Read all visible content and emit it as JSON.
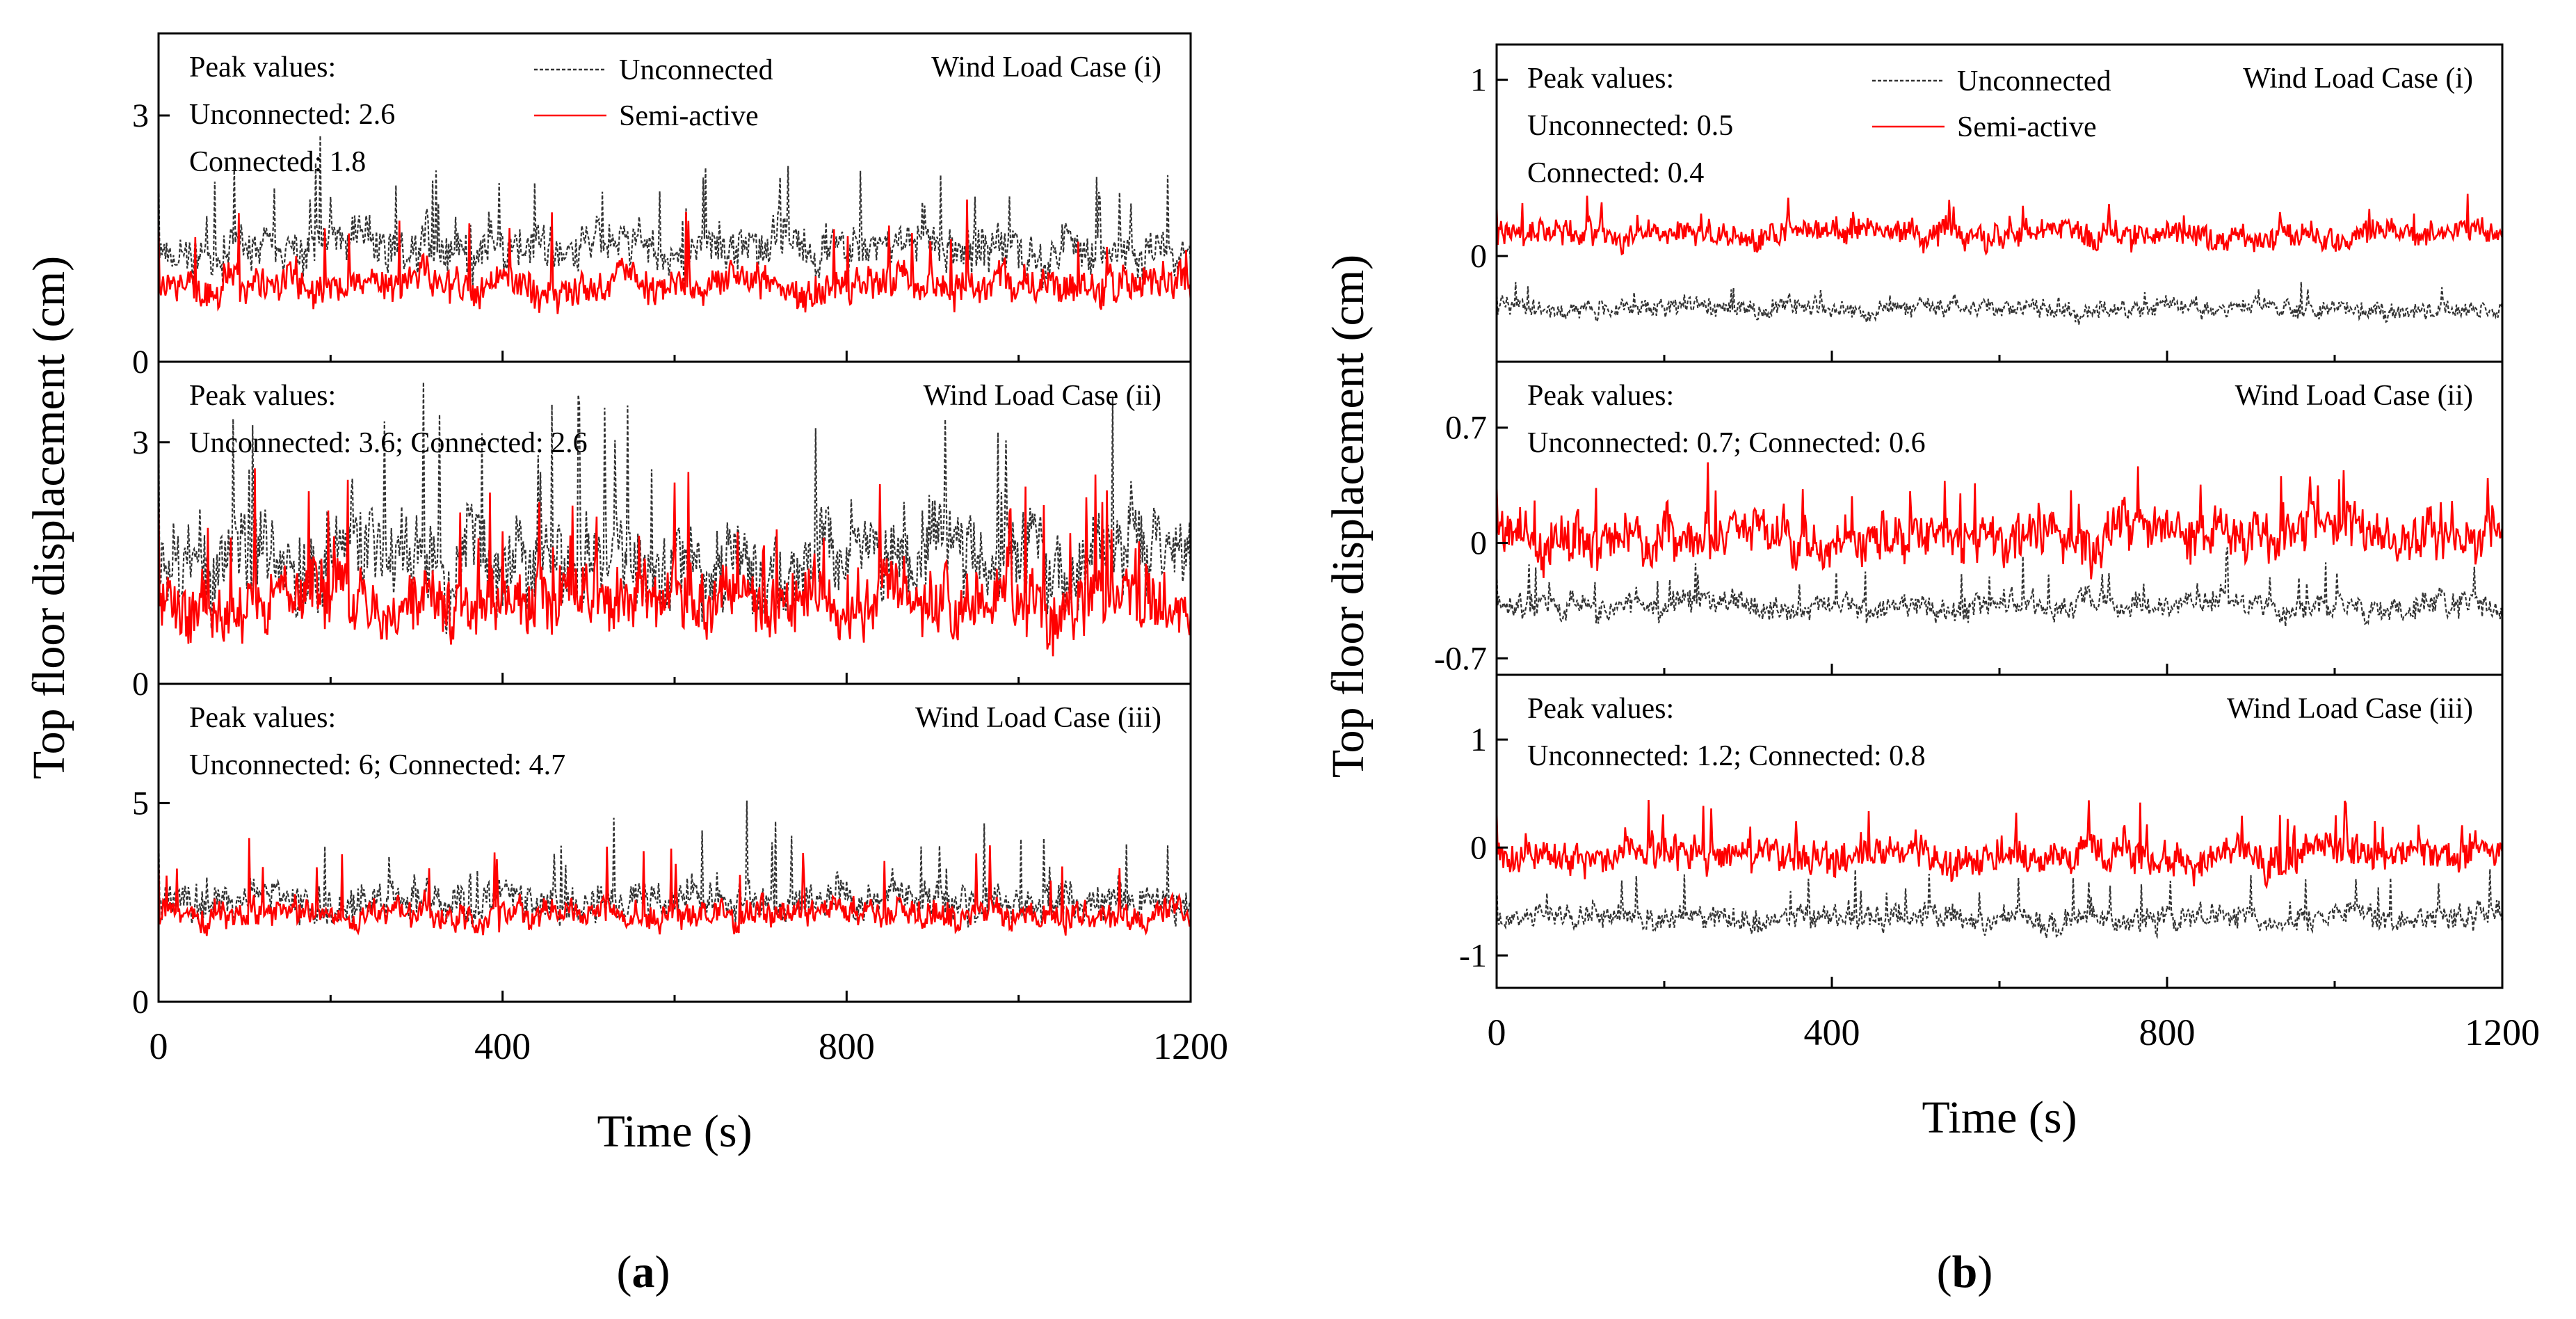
{
  "chart_data": [
    {
      "type": "line",
      "panel_label_prefix": "(",
      "panel_label_letter": "a",
      "panel_label_suffix": ")",
      "xlabel": "Time (s)",
      "ylabel": "Top floor displacement (cm)",
      "xlim": [
        0,
        1200
      ],
      "xticks": [
        "0",
        "400",
        "800",
        "1200"
      ],
      "subplots": [
        {
          "case_label": "Wind Load Case (i)",
          "peak_title": "Peak values:",
          "peak_lines": [
            "Unconnected: 2.6",
            "Connected: 1.8"
          ],
          "legend": [
            "Unconnected",
            "Semi-active"
          ],
          "ylim": [
            0,
            4
          ],
          "yticks": [
            0,
            3
          ],
          "ytick_labels": [
            "0",
            "3"
          ],
          "series": [
            {
              "name": "Unconnected",
              "color": "#333333",
              "dashed": true,
              "base": 1.4,
              "amp": 0.38,
              "spike": 1.1,
              "seed": 11
            },
            {
              "name": "Semi-active",
              "color": "#ff0000",
              "dashed": false,
              "base": 0.95,
              "amp": 0.3,
              "spike": 0.85,
              "seed": 12
            }
          ]
        },
        {
          "case_label": "Wind Load Case (ii)",
          "peak_title": "Peak values:",
          "peak_lines": [
            "Unconnected: 3.6; Connected: 2.6"
          ],
          "legend": [],
          "ylim": [
            0,
            4
          ],
          "yticks": [
            0,
            3
          ],
          "ytick_labels": [
            "0",
            "3"
          ],
          "series": [
            {
              "name": "Unconnected",
              "color": "#333333",
              "dashed": true,
              "base": 1.55,
              "amp": 0.75,
              "spike": 2.0,
              "seed": 21
            },
            {
              "name": "Semi-active",
              "color": "#ff0000",
              "dashed": false,
              "base": 1.05,
              "amp": 0.55,
              "spike": 1.5,
              "seed": 22
            }
          ]
        },
        {
          "case_label": "Wind Load Case (iii)",
          "peak_title": "Peak values:",
          "peak_lines": [
            "Unconnected: 6; Connected: 4.7"
          ],
          "legend": [],
          "ylim": [
            0,
            8
          ],
          "yticks": [
            0,
            5
          ],
          "ytick_labels": [
            "0",
            "5"
          ],
          "series": [
            {
              "name": "Unconnected",
              "color": "#333333",
              "dashed": true,
              "base": 2.5,
              "amp": 0.65,
              "spike": 2.0,
              "seed": 31
            },
            {
              "name": "Semi-active",
              "color": "#ff0000",
              "dashed": false,
              "base": 2.2,
              "amp": 0.5,
              "spike": 1.6,
              "seed": 32
            }
          ]
        }
      ]
    },
    {
      "type": "line",
      "panel_label_prefix": "(",
      "panel_label_letter": "b",
      "panel_label_suffix": ")",
      "xlabel": "Time (s)",
      "ylabel": "Top floor displacement (cm)",
      "xlim": [
        0,
        1200
      ],
      "xticks": [
        "0",
        "400",
        "800",
        "1200"
      ],
      "subplots": [
        {
          "case_label": "Wind Load Case (i)",
          "peak_title": "Peak values:",
          "peak_lines": [
            "Unconnected: 0.5",
            "Connected: 0.4"
          ],
          "legend": [
            "Unconnected",
            "Semi-active"
          ],
          "ylim": [
            -0.6,
            1.2
          ],
          "yticks": [
            0,
            1
          ],
          "ytick_labels": [
            "0",
            "1"
          ],
          "series": [
            {
              "name": "Unconnected",
              "color": "#333333",
              "dashed": true,
              "base": -0.3,
              "amp": 0.07,
              "spike": 0.12,
              "seed": 41
            },
            {
              "name": "Semi-active",
              "color": "#ff0000",
              "dashed": false,
              "base": 0.12,
              "amp": 0.1,
              "spike": 0.2,
              "seed": 42
            }
          ]
        },
        {
          "case_label": "Wind Load Case (ii)",
          "peak_title": "Peak values:",
          "peak_lines": [
            "Unconnected: 0.7; Connected: 0.6"
          ],
          "legend": [],
          "ylim": [
            -0.8,
            1.1
          ],
          "yticks": [
            -0.7,
            0,
            0.7
          ],
          "ytick_labels": [
            "-0.7",
            "0",
            "0.7"
          ],
          "series": [
            {
              "name": "Unconnected",
              "color": "#333333",
              "dashed": true,
              "base": -0.38,
              "amp": 0.1,
              "spike": 0.25,
              "seed": 51
            },
            {
              "name": "Semi-active",
              "color": "#ff0000",
              "dashed": false,
              "base": 0.05,
              "amp": 0.2,
              "spike": 0.35,
              "seed": 52
            }
          ]
        },
        {
          "case_label": "Wind Load Case (iii)",
          "peak_title": "Peak values:",
          "peak_lines": [
            "Unconnected: 1.2; Connected: 0.8"
          ],
          "legend": [],
          "ylim": [
            -1.3,
            1.6
          ],
          "yticks": [
            -1,
            0,
            1
          ],
          "ytick_labels": [
            "-1",
            "0",
            "1"
          ],
          "series": [
            {
              "name": "Unconnected",
              "color": "#333333",
              "dashed": true,
              "base": -0.65,
              "amp": 0.15,
              "spike": 0.4,
              "seed": 61
            },
            {
              "name": "Semi-active",
              "color": "#ff0000",
              "dashed": false,
              "base": -0.05,
              "amp": 0.22,
              "spike": 0.45,
              "seed": 62
            }
          ]
        }
      ]
    }
  ]
}
